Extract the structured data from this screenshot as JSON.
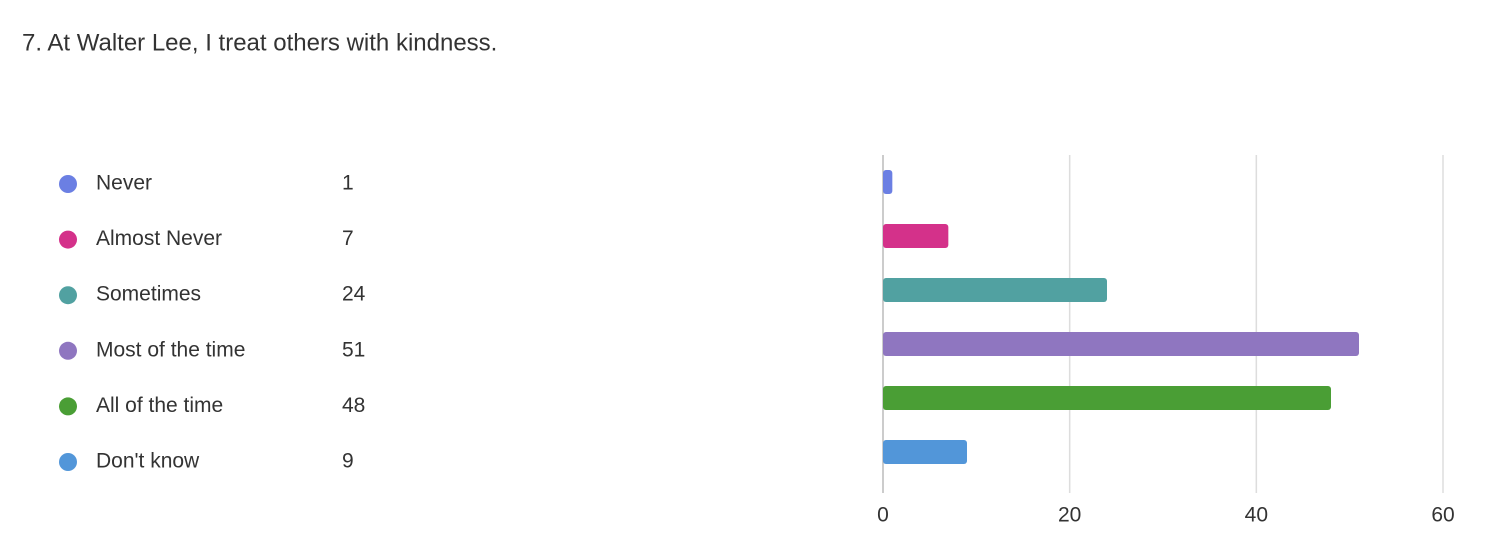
{
  "chart_data": {
    "type": "hbar",
    "title": "7. At Walter Lee, I treat others with kindness.",
    "categories": [
      "Never",
      "Almost Never",
      "Sometimes",
      "Most of the time",
      "All of the time",
      "Don't know"
    ],
    "values": [
      1,
      7,
      24,
      51,
      48,
      9
    ],
    "colors": [
      "#6b7fe3",
      "#d4318a",
      "#51a1a1",
      "#8f76c0",
      "#4a9e35",
      "#5296d9"
    ],
    "xlim": [
      0,
      60
    ],
    "xticks": [
      0,
      20,
      40,
      60
    ],
    "grid": true
  }
}
